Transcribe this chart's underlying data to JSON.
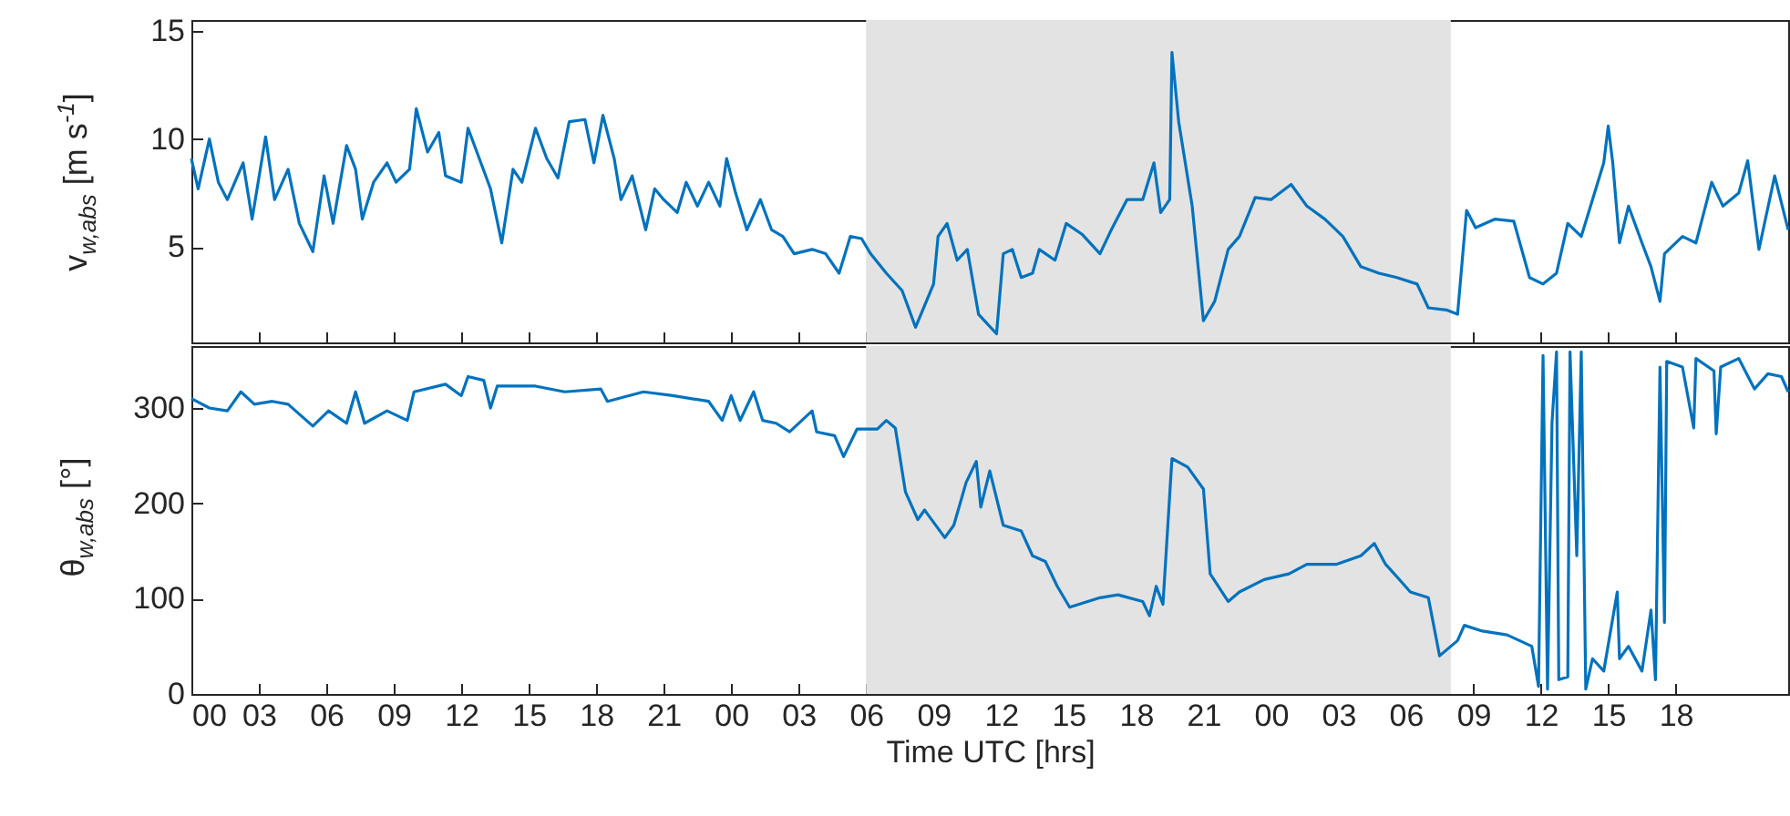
{
  "chart_data": [
    {
      "type": "line",
      "ylabel": "v$_{w,abs}$ [m s$^{-1}$]",
      "tick_labels": "y",
      "marker": "none",
      "line_style": "solid",
      "grid": false,
      "legend": false,
      "xlim": [
        0,
        71
      ],
      "xticks": [
        0,
        3,
        6,
        9,
        12,
        15,
        18,
        21,
        24,
        27,
        30,
        33,
        36,
        39,
        42,
        45,
        48,
        51,
        54,
        57,
        60,
        63,
        66
      ],
      "ylim": [
        0.6,
        15.5
      ],
      "yticks": [
        5,
        10,
        15
      ],
      "bands": [
        {
          "axis": "x",
          "from": 30,
          "to": 56,
          "color": "#e3e3e3"
        }
      ],
      "series": [
        {
          "color": "#0072bd",
          "x": [
            0,
            0.3,
            0.8,
            1.2,
            1.6,
            2.3,
            2.7,
            3.3,
            3.7,
            4.3,
            4.8,
            5.4,
            5.9,
            6.3,
            6.9,
            7.3,
            7.6,
            8.1,
            8.7,
            9.1,
            9.7,
            10.0,
            10.5,
            11.0,
            11.3,
            12.0,
            12.3,
            12.8,
            13.3,
            13.8,
            14.3,
            14.7,
            15.3,
            15.8,
            16.3,
            16.8,
            17.5,
            17.9,
            18.3,
            18.8,
            19.1,
            19.6,
            20.2,
            20.6,
            21.0,
            21.6,
            22.0,
            22.5,
            23.0,
            23.5,
            23.8,
            24.2,
            24.7,
            25.3,
            25.8,
            26.3,
            26.8,
            27.6,
            28.2,
            28.8,
            29.3,
            29.8,
            30.2,
            30.9,
            31.6,
            32.2,
            33.0,
            33.2,
            33.6,
            34.05,
            34.5,
            35.0,
            35.8,
            36.1,
            36.5,
            36.9,
            37.4,
            37.7,
            38.4,
            38.9,
            39.6,
            40.4,
            40.9,
            41.6,
            42.3,
            42.8,
            43.1,
            43.5,
            43.6,
            43.9,
            44.5,
            45.0,
            45.5,
            46.1,
            46.6,
            47.3,
            48.0,
            48.9,
            49.6,
            50.4,
            51.2,
            52.0,
            52.8,
            53.6,
            54.5,
            55.0,
            55.8,
            56.3,
            56.7,
            57.1,
            57.97,
            58.8,
            59.5,
            60.1,
            60.7,
            61.2,
            61.8,
            62.3,
            62.8,
            63.0,
            63.2,
            63.5,
            63.9,
            64.5,
            64.9,
            65.3,
            65.5,
            66.3,
            66.9,
            67.6,
            68.1,
            68.8,
            69.2,
            69.7,
            70.4,
            71.0
          ],
          "values": [
            9.1,
            7.7,
            10.0,
            8.0,
            7.2,
            8.9,
            6.3,
            10.1,
            7.2,
            8.6,
            6.1,
            4.8,
            8.3,
            6.1,
            9.7,
            8.6,
            6.3,
            8.0,
            8.9,
            8.0,
            8.6,
            11.4,
            9.4,
            10.3,
            8.3,
            8.0,
            10.5,
            9.1,
            7.7,
            5.2,
            8.6,
            8.0,
            10.5,
            9.1,
            8.2,
            10.8,
            10.9,
            8.9,
            11.1,
            9.1,
            7.2,
            8.3,
            5.8,
            7.7,
            7.2,
            6.6,
            8.0,
            6.9,
            8.0,
            6.9,
            9.1,
            7.5,
            5.8,
            7.2,
            5.8,
            5.5,
            4.7,
            4.9,
            4.7,
            3.8,
            5.5,
            5.4,
            4.7,
            3.8,
            3.0,
            1.3,
            3.3,
            5.5,
            6.1,
            4.4,
            4.9,
            1.9,
            1.0,
            4.7,
            4.9,
            3.6,
            3.8,
            4.9,
            4.4,
            6.1,
            5.6,
            4.7,
            5.8,
            7.2,
            7.2,
            8.9,
            6.6,
            7.2,
            14.0,
            10.8,
            6.9,
            1.6,
            2.5,
            4.9,
            5.5,
            7.3,
            7.2,
            7.9,
            6.9,
            6.3,
            5.5,
            4.1,
            3.8,
            3.6,
            3.3,
            2.2,
            2.1,
            1.9,
            6.7,
            5.9,
            6.3,
            6.2,
            3.6,
            3.3,
            3.8,
            6.1,
            5.5,
            7.2,
            8.9,
            10.6,
            8.9,
            5.2,
            6.9,
            5.2,
            4.1,
            2.5,
            4.7,
            5.5,
            5.2,
            8.0,
            6.9,
            7.5,
            9.0,
            4.9,
            8.3,
            5.8
          ]
        }
      ]
    },
    {
      "type": "line",
      "ylabel": "θ$_{w,abs}$ [°]",
      "xlabel": "Time UTC [hrs]",
      "marker": "none",
      "line_style": "solid",
      "grid": false,
      "legend": false,
      "xlim": [
        0,
        71
      ],
      "xticks": [
        {
          "value": 0,
          "label": "00"
        },
        {
          "value": 3,
          "label": "03"
        },
        {
          "value": 6,
          "label": "06"
        },
        {
          "value": 9,
          "label": "09"
        },
        {
          "value": 12,
          "label": "12"
        },
        {
          "value": 15,
          "label": "15"
        },
        {
          "value": 18,
          "label": "18"
        },
        {
          "value": 21,
          "label": "21"
        },
        {
          "value": 24,
          "label": "00"
        },
        {
          "value": 27,
          "label": "03"
        },
        {
          "value": 30,
          "label": "06"
        },
        {
          "value": 33,
          "label": "09"
        },
        {
          "value": 36,
          "label": "12"
        },
        {
          "value": 39,
          "label": "15"
        },
        {
          "value": 42,
          "label": "18"
        },
        {
          "value": 45,
          "label": "21"
        },
        {
          "value": 48,
          "label": "00"
        },
        {
          "value": 51,
          "label": "03"
        },
        {
          "value": 54,
          "label": "06"
        },
        {
          "value": 57,
          "label": "09"
        },
        {
          "value": 60,
          "label": "12"
        },
        {
          "value": 63,
          "label": "15"
        },
        {
          "value": 66,
          "label": "18"
        }
      ],
      "ylim": [
        0,
        365
      ],
      "yticks": [
        0,
        100,
        200,
        300
      ],
      "bands": [
        {
          "axis": "x",
          "from": 30,
          "to": 56,
          "color": "#e3e3e3"
        }
      ],
      "series": [
        {
          "color": "#0072bd",
          "x": [
            0,
            0.8,
            1.6,
            2.2,
            2.8,
            3.6,
            4.3,
            5.4,
            6.1,
            6.9,
            7.3,
            7.7,
            8.7,
            9.6,
            9.9,
            11.3,
            12.0,
            12.3,
            13.0,
            13.3,
            13.6,
            15.3,
            16.6,
            18.2,
            18.5,
            20.1,
            21.4,
            23.0,
            23.6,
            24.0,
            24.4,
            25.0,
            25.4,
            26.0,
            26.6,
            27.6,
            27.8,
            28.6,
            29.0,
            29.6,
            30.5,
            30.9,
            31.3,
            31.75,
            32.3,
            32.6,
            33.5,
            33.9,
            34.45,
            34.9,
            35.1,
            35.5,
            36.1,
            36.9,
            37.4,
            37.97,
            38.5,
            39.05,
            40.4,
            41.2,
            42.3,
            42.6,
            42.9,
            43.2,
            43.6,
            44.3,
            45.0,
            45.3,
            46.1,
            46.6,
            47.7,
            48.8,
            49.6,
            50.9,
            52.0,
            52.6,
            53.1,
            53.6,
            54.2,
            55.0,
            55.5,
            56.3,
            56.6,
            57.4,
            58.5,
            59.6,
            59.9,
            60.1,
            60.3,
            60.5,
            60.7,
            60.8,
            61.2,
            61.3,
            61.6,
            61.8,
            62.0,
            62.3,
            62.8,
            63.4,
            63.5,
            63.9,
            64.5,
            64.9,
            65.1,
            65.3,
            65.5,
            65.6,
            66.3,
            66.8,
            66.9,
            67.7,
            67.8,
            68.0,
            68.8,
            69.5,
            70.1,
            70.7,
            71.0
          ],
          "values": [
            310,
            300,
            297,
            317,
            304,
            307,
            304,
            281,
            297,
            284,
            317,
            284,
            297,
            287,
            317,
            325,
            313,
            333,
            329,
            300,
            323,
            323,
            317,
            320,
            307,
            317,
            313,
            307,
            287,
            313,
            287,
            317,
            287,
            284,
            275,
            297,
            275,
            271,
            249,
            278,
            278,
            287,
            279,
            212,
            183,
            193,
            164,
            177,
            222,
            244,
            196,
            234,
            177,
            171,
            145,
            139,
            113,
            91,
            101,
            104,
            97,
            82,
            113,
            94,
            247,
            238,
            215,
            126,
            97,
            107,
            120,
            126,
            136,
            136,
            145,
            158,
            136,
            123,
            107,
            101,
            40,
            56,
            72,
            66,
            62,
            50,
            8,
            355,
            5,
            285,
            359,
            15,
            18,
            359,
            145,
            359,
            5,
            37,
            24,
            107,
            37,
            50,
            24,
            88,
            15,
            343,
            75,
            349,
            343,
            279,
            352,
            339,
            273,
            343,
            352,
            320,
            336,
            333,
            317
          ]
        }
      ]
    }
  ]
}
